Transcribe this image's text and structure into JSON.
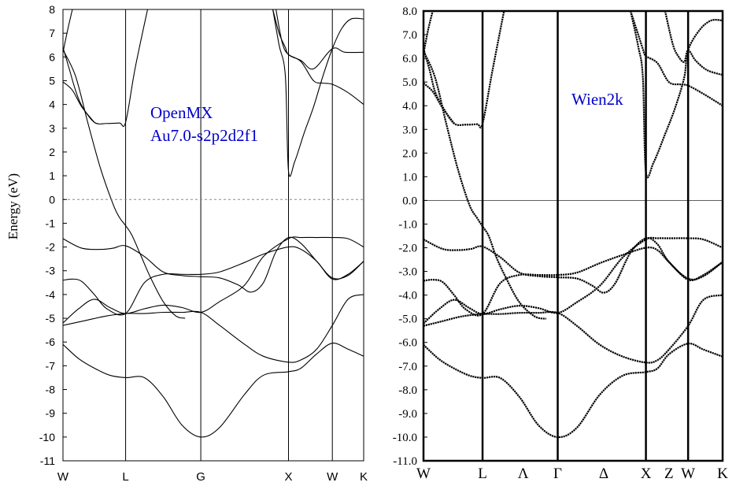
{
  "chart_data": [
    {
      "type": "line",
      "title": "",
      "xlabel": "",
      "ylabel": "Energy (eV)",
      "ylim": [
        -11,
        8
      ],
      "yticks": [
        "8",
        "7",
        "6",
        "5",
        "4",
        "3",
        "2",
        "1",
        "0",
        "-1",
        "-2",
        "-3",
        "-4",
        "-5",
        "-6",
        "-7",
        "-8",
        "-9",
        "-10",
        "-11"
      ],
      "high_symmetry_labels": [
        "W",
        "L",
        "G",
        "X",
        "W",
        "K"
      ],
      "high_symmetry_x": [
        0,
        1,
        2.2,
        3.6,
        4.3,
        4.8
      ],
      "fermi_level": 0,
      "annotations": [
        "OpenMX",
        "Au7.0-s2p2d2f1"
      ],
      "annotation_color": "#0000cc",
      "series": [
        {
          "x": [
            0,
            0.25,
            0.5,
            0.75,
            1,
            1.3,
            1.6,
            1.9,
            2.2,
            2.5,
            2.9,
            3.2,
            3.6,
            3.8,
            4.05,
            4.3,
            4.55,
            4.8
          ],
          "values": [
            -6.1,
            -6.7,
            -7.1,
            -7.4,
            -7.5,
            -7.5,
            -8.3,
            -9.5,
            -10,
            -9.6,
            -8.2,
            -7.4,
            -7.25,
            -7.1,
            -6.5,
            -6.05,
            -6.3,
            -6.6
          ]
        },
        {
          "x": [
            0,
            0.35,
            0.7,
            1,
            1.3,
            1.6,
            1.9,
            2.2,
            2.5,
            2.9,
            3.2,
            3.6,
            3.8,
            4.05,
            4.3,
            4.55,
            4.8
          ],
          "values": [
            -5.3,
            -5.1,
            -4.9,
            -4.8,
            -4.8,
            -4.75,
            -4.75,
            -4.75,
            -5.3,
            -6.1,
            -6.6,
            -6.85,
            -6.75,
            -6.3,
            -5.3,
            -4.2,
            -4.0
          ]
        },
        {
          "x": [
            0,
            0.25,
            0.5,
            0.75,
            1,
            1.3,
            1.6,
            1.9,
            2.2,
            2.5,
            2.9,
            3.2,
            3.6,
            3.8,
            4.05,
            4.3,
            4.55,
            4.8
          ],
          "values": [
            -5.2,
            -4.6,
            -4.2,
            -4.55,
            -4.8,
            -4.6,
            -4.45,
            -4.55,
            -4.75,
            -4.3,
            -3.6,
            -2.4,
            -1.65,
            -1.6,
            -1.6,
            -1.6,
            -1.65,
            -2.0
          ]
        },
        {
          "x": [
            0,
            0.15,
            0.3,
            0.5,
            0.7,
            1,
            1.3,
            1.6,
            1.9,
            2.2,
            2.5,
            2.9,
            3.2,
            3.6,
            3.8,
            4.05,
            4.3,
            4.55,
            4.8
          ],
          "values": [
            -3.4,
            -3.35,
            -3.45,
            -4.0,
            -4.6,
            -4.8,
            -3.5,
            -3.15,
            -3.15,
            -3.15,
            -3.05,
            -2.65,
            -2.3,
            -2.0,
            -2.1,
            -2.6,
            -3.35,
            -3.15,
            -2.6
          ]
        },
        {
          "x": [
            0,
            0.3,
            0.6,
            0.8,
            1,
            1.3,
            1.6,
            1.9,
            2.2,
            2.5,
            2.8,
            3.0,
            3.2,
            3.4,
            3.6,
            3.8,
            4.05,
            4.3,
            4.55,
            4.8
          ],
          "values": [
            -1.65,
            -2.05,
            -2.1,
            -2.05,
            -1.95,
            -2.4,
            -3.05,
            -3.2,
            -3.25,
            -3.3,
            -3.6,
            -3.9,
            -3.5,
            -2.2,
            -1.6,
            -1.85,
            -2.6,
            -3.3,
            -3.2,
            -2.6
          ]
        },
        {
          "x": [
            0,
            0.2,
            0.4,
            0.6,
            0.8,
            0.9,
            1,
            1.1,
            1.25,
            1.4,
            1.6,
            1.8,
            1.95
          ],
          "values": [
            6.3,
            5.2,
            3.2,
            1.3,
            -0.2,
            -0.75,
            -1.1,
            -1.5,
            -2.4,
            -3.3,
            -4.3,
            -4.9,
            -5.0
          ]
        },
        {
          "x": [
            0,
            0.1,
            0.2,
            0.3,
            0.5,
            0.7,
            0.9,
            1,
            1.15,
            1.35
          ],
          "values": [
            6.4,
            5.5,
            4.6,
            3.95,
            3.25,
            3.2,
            3.22,
            3.25,
            5.5,
            8
          ]
        },
        {
          "x": [
            3.35,
            3.45,
            3.55,
            3.6,
            3.7,
            3.85,
            4.0,
            4.15,
            4.3,
            4.45,
            4.6,
            4.8
          ],
          "values": [
            8,
            6.5,
            5.2,
            1.2,
            1.6,
            2.8,
            3.9,
            5.2,
            6.35,
            7.2,
            7.6,
            7.6
          ]
        },
        {
          "x": [
            3.35,
            3.45,
            3.55,
            3.6,
            3.8,
            4.0,
            4.15,
            4.3,
            4.55,
            4.8
          ],
          "values": [
            8,
            7.0,
            6.4,
            6.1,
            5.8,
            5.0,
            4.9,
            4.85,
            4.5,
            4.0
          ]
        },
        {
          "x": [
            3.4,
            3.5,
            3.6,
            3.8,
            4.0,
            4.3,
            4.5,
            4.8
          ],
          "values": [
            8,
            6.6,
            6.1,
            5.85,
            5.5,
            6.35,
            6.2,
            6.2
          ]
        },
        {
          "x": [
            0,
            0.15,
            0.3,
            0.5
          ],
          "values": [
            4.95,
            4.6,
            3.9,
            3.25
          ]
        },
        {
          "x": [
            0,
            0.08,
            0.15
          ],
          "values": [
            6.2,
            7.2,
            8
          ]
        }
      ]
    },
    {
      "type": "line",
      "title": "",
      "xlabel": "",
      "ylabel": "",
      "ylim": [
        -11,
        8
      ],
      "yticks": [
        "8.0",
        "7.0",
        "6.0",
        "5.0",
        "4.0",
        "3.0",
        "2.0",
        "1.0",
        "0.0",
        "-1.0",
        "-2.0",
        "-3.0",
        "-4.0",
        "-5.0",
        "-6.0",
        "-7.0",
        "-8.0",
        "-9.0",
        "-10.0",
        "-11.0"
      ],
      "high_symmetry_labels": [
        "W",
        "L",
        "Λ",
        "Γ",
        "Δ",
        "X",
        "Z",
        "W",
        "K"
      ],
      "high_symmetry_x": [
        0,
        0.77,
        1.3,
        1.75,
        2.35,
        2.9,
        3.2,
        3.45,
        3.9
      ],
      "vertical_lines_x": [
        0.77,
        1.75,
        2.9,
        3.45
      ],
      "fermi_level": 0,
      "annotations": [
        "Wien2k"
      ],
      "annotation_color": "#0000cc",
      "series": [
        {
          "x": [
            0,
            0.2,
            0.4,
            0.6,
            0.77,
            1.0,
            1.25,
            1.5,
            1.75,
            2.0,
            2.3,
            2.6,
            2.9,
            3.05,
            3.2,
            3.45,
            3.65,
            3.9
          ],
          "values": [
            -6.1,
            -6.7,
            -7.1,
            -7.4,
            -7.5,
            -7.5,
            -8.3,
            -9.5,
            -10,
            -9.6,
            -8.2,
            -7.4,
            -7.25,
            -7.1,
            -6.5,
            -6.05,
            -6.3,
            -6.6
          ]
        },
        {
          "x": [
            0,
            0.25,
            0.5,
            0.77,
            1.0,
            1.25,
            1.5,
            1.75,
            2.0,
            2.3,
            2.6,
            2.9,
            3.05,
            3.2,
            3.45,
            3.65,
            3.9
          ],
          "values": [
            -5.3,
            -5.1,
            -4.9,
            -4.8,
            -4.8,
            -4.75,
            -4.75,
            -4.75,
            -5.3,
            -6.1,
            -6.6,
            -6.85,
            -6.75,
            -6.3,
            -5.3,
            -4.2,
            -4.0
          ]
        },
        {
          "x": [
            0,
            0.2,
            0.4,
            0.6,
            0.77,
            1.0,
            1.25,
            1.5,
            1.75,
            2.0,
            2.3,
            2.6,
            2.9,
            3.05,
            3.2,
            3.45,
            3.65,
            3.9
          ],
          "values": [
            -5.2,
            -4.6,
            -4.2,
            -4.55,
            -4.8,
            -4.6,
            -4.45,
            -4.55,
            -4.75,
            -4.3,
            -3.6,
            -2.4,
            -1.65,
            -1.6,
            -1.6,
            -1.6,
            -1.65,
            -2.0
          ]
        },
        {
          "x": [
            0,
            0.12,
            0.25,
            0.4,
            0.55,
            0.77,
            1.0,
            1.25,
            1.5,
            1.75,
            2.0,
            2.3,
            2.6,
            2.9,
            3.05,
            3.2,
            3.45,
            3.65,
            3.9
          ],
          "values": [
            -3.4,
            -3.35,
            -3.45,
            -4.0,
            -4.6,
            -4.8,
            -3.5,
            -3.15,
            -3.15,
            -3.15,
            -3.05,
            -2.65,
            -2.3,
            -2.0,
            -2.1,
            -2.6,
            -3.35,
            -3.15,
            -2.6
          ]
        },
        {
          "x": [
            0,
            0.25,
            0.45,
            0.62,
            0.77,
            1.0,
            1.25,
            1.5,
            1.75,
            2.0,
            2.2,
            2.35,
            2.5,
            2.7,
            2.9,
            3.05,
            3.2,
            3.45,
            3.65,
            3.9
          ],
          "values": [
            -1.65,
            -2.05,
            -2.1,
            -2.05,
            -1.95,
            -2.4,
            -3.05,
            -3.2,
            -3.25,
            -3.3,
            -3.6,
            -3.9,
            -3.5,
            -2.2,
            -1.6,
            -1.85,
            -2.6,
            -3.3,
            -3.2,
            -2.6
          ]
        },
        {
          "x": [
            0,
            0.15,
            0.3,
            0.45,
            0.6,
            0.7,
            0.77,
            0.85,
            0.95,
            1.08,
            1.25,
            1.45,
            1.6
          ],
          "values": [
            6.3,
            5.2,
            3.2,
            1.3,
            -0.2,
            -0.75,
            -1.1,
            -1.5,
            -2.4,
            -3.3,
            -4.3,
            -4.9,
            -5.0
          ]
        },
        {
          "x": [
            0,
            0.08,
            0.15,
            0.25,
            0.4,
            0.55,
            0.7,
            0.77,
            0.9,
            1.05
          ],
          "values": [
            6.4,
            5.5,
            4.6,
            3.95,
            3.25,
            3.2,
            3.22,
            3.25,
            5.5,
            8
          ]
        },
        {
          "x": [
            2.7,
            2.8,
            2.86,
            2.9,
            3.0,
            3.15,
            3.28,
            3.4,
            3.45,
            3.6,
            3.75,
            3.9
          ],
          "values": [
            8,
            6.5,
            5.2,
            1.2,
            1.6,
            2.8,
            3.9,
            5.2,
            6.35,
            7.2,
            7.6,
            7.6
          ]
        },
        {
          "x": [
            2.7,
            2.8,
            2.86,
            2.9,
            3.05,
            3.2,
            3.35,
            3.45,
            3.65,
            3.9
          ],
          "values": [
            8,
            7.0,
            6.4,
            6.1,
            5.8,
            5.0,
            4.9,
            4.85,
            4.5,
            4.0
          ]
        },
        {
          "x": [
            3.15,
            3.25,
            3.32,
            3.4,
            3.45,
            3.55,
            3.7,
            3.9
          ],
          "values": [
            8,
            6.6,
            6.1,
            5.85,
            6.35,
            5.9,
            5.5,
            5.3
          ]
        },
        {
          "x": [
            0,
            0.12,
            0.25,
            0.4
          ],
          "values": [
            4.95,
            4.6,
            3.9,
            3.25
          ]
        },
        {
          "x": [
            0,
            0.06,
            0.12
          ],
          "values": [
            6.2,
            7.2,
            8
          ]
        }
      ]
    }
  ]
}
